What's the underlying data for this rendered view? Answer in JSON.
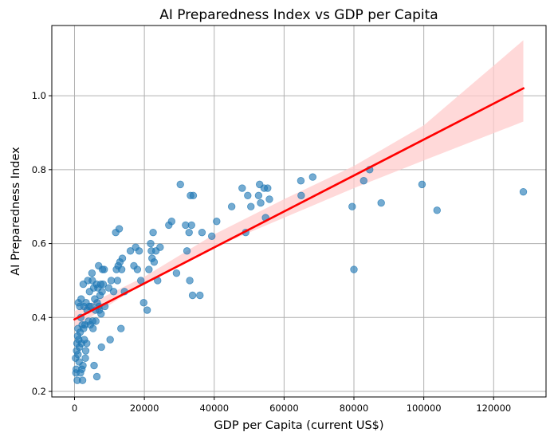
{
  "chart_data": {
    "type": "scatter",
    "title": "AI Preparedness Index vs GDP per Capita",
    "xlabel": "GDP per Capita (current US$)",
    "ylabel": "AI Preparedness Index",
    "xlim": [
      -6500,
      135000
    ],
    "ylim": [
      0.185,
      1.19
    ],
    "xticks": [
      0,
      20000,
      40000,
      60000,
      80000,
      100000,
      120000
    ],
    "xtick_labels": [
      "0",
      "20000",
      "40000",
      "60000",
      "80000",
      "100000",
      "120000"
    ],
    "yticks": [
      0.2,
      0.4,
      0.6,
      0.8,
      1.0
    ],
    "ytick_labels": [
      "0.2",
      "0.4",
      "0.6",
      "0.8",
      "1.0"
    ],
    "grid": true,
    "legend": "none",
    "colors": {
      "points": "#1f77b4",
      "fit_line": "#ff0000",
      "confidence_band": "#ffcccc"
    },
    "fit_line": {
      "x": [
        0,
        128500
      ],
      "y": [
        0.395,
        1.02
      ]
    },
    "confidence_band": {
      "x": [
        0,
        20000,
        40000,
        60000,
        80000,
        100000,
        128500
      ],
      "lower": [
        0.373,
        0.495,
        0.59,
        0.67,
        0.75,
        0.825,
        0.93
      ],
      "upper": [
        0.417,
        0.51,
        0.625,
        0.72,
        0.81,
        0.92,
        1.15
      ]
    },
    "points": [
      {
        "x": 300,
        "y": 0.29
      },
      {
        "x": 400,
        "y": 0.25
      },
      {
        "x": 500,
        "y": 0.26
      },
      {
        "x": 600,
        "y": 0.31
      },
      {
        "x": 700,
        "y": 0.33
      },
      {
        "x": 800,
        "y": 0.23
      },
      {
        "x": 900,
        "y": 0.35
      },
      {
        "x": 1000,
        "y": 0.37
      },
      {
        "x": 1000,
        "y": 0.3
      },
      {
        "x": 1100,
        "y": 0.44
      },
      {
        "x": 1200,
        "y": 0.34
      },
      {
        "x": 1300,
        "y": 0.28
      },
      {
        "x": 1400,
        "y": 0.32
      },
      {
        "x": 1500,
        "y": 0.43
      },
      {
        "x": 1600,
        "y": 0.36
      },
      {
        "x": 1700,
        "y": 0.25
      },
      {
        "x": 1800,
        "y": 0.4
      },
      {
        "x": 1900,
        "y": 0.45
      },
      {
        "x": 2000,
        "y": 0.33
      },
      {
        "x": 2100,
        "y": 0.26
      },
      {
        "x": 2200,
        "y": 0.38
      },
      {
        "x": 2300,
        "y": 0.23
      },
      {
        "x": 2400,
        "y": 0.27
      },
      {
        "x": 2500,
        "y": 0.49
      },
      {
        "x": 2600,
        "y": 0.37
      },
      {
        "x": 2700,
        "y": 0.43
      },
      {
        "x": 2800,
        "y": 0.34
      },
      {
        "x": 3000,
        "y": 0.38
      },
      {
        "x": 3100,
        "y": 0.29
      },
      {
        "x": 3200,
        "y": 0.31
      },
      {
        "x": 3300,
        "y": 0.44
      },
      {
        "x": 3500,
        "y": 0.33
      },
      {
        "x": 3600,
        "y": 0.42
      },
      {
        "x": 3800,
        "y": 0.5
      },
      {
        "x": 4000,
        "y": 0.39
      },
      {
        "x": 4200,
        "y": 0.43
      },
      {
        "x": 4300,
        "y": 0.47
      },
      {
        "x": 4500,
        "y": 0.38
      },
      {
        "x": 4700,
        "y": 0.43
      },
      {
        "x": 5000,
        "y": 0.52
      },
      {
        "x": 5100,
        "y": 0.5
      },
      {
        "x": 5200,
        "y": 0.39
      },
      {
        "x": 5300,
        "y": 0.37
      },
      {
        "x": 5500,
        "y": 0.48
      },
      {
        "x": 5600,
        "y": 0.27
      },
      {
        "x": 5800,
        "y": 0.45
      },
      {
        "x": 6000,
        "y": 0.42
      },
      {
        "x": 6100,
        "y": 0.39
      },
      {
        "x": 6300,
        "y": 0.49
      },
      {
        "x": 6400,
        "y": 0.24
      },
      {
        "x": 6500,
        "y": 0.44
      },
      {
        "x": 6700,
        "y": 0.48
      },
      {
        "x": 6900,
        "y": 0.54
      },
      {
        "x": 7000,
        "y": 0.43
      },
      {
        "x": 7100,
        "y": 0.42
      },
      {
        "x": 7300,
        "y": 0.46
      },
      {
        "x": 7500,
        "y": 0.49
      },
      {
        "x": 7600,
        "y": 0.41
      },
      {
        "x": 7700,
        "y": 0.32
      },
      {
        "x": 7900,
        "y": 0.47
      },
      {
        "x": 8000,
        "y": 0.53
      },
      {
        "x": 8200,
        "y": 0.49
      },
      {
        "x": 8500,
        "y": 0.53
      },
      {
        "x": 8700,
        "y": 0.43
      },
      {
        "x": 9800,
        "y": 0.48
      },
      {
        "x": 10200,
        "y": 0.34
      },
      {
        "x": 10500,
        "y": 0.5
      },
      {
        "x": 11200,
        "y": 0.47
      },
      {
        "x": 11800,
        "y": 0.63
      },
      {
        "x": 12000,
        "y": 0.53
      },
      {
        "x": 12300,
        "y": 0.5
      },
      {
        "x": 12500,
        "y": 0.54
      },
      {
        "x": 12800,
        "y": 0.64
      },
      {
        "x": 13000,
        "y": 0.55
      },
      {
        "x": 13300,
        "y": 0.37
      },
      {
        "x": 13500,
        "y": 0.53
      },
      {
        "x": 13700,
        "y": 0.56
      },
      {
        "x": 14300,
        "y": 0.47
      },
      {
        "x": 16000,
        "y": 0.58
      },
      {
        "x": 17000,
        "y": 0.54
      },
      {
        "x": 17500,
        "y": 0.59
      },
      {
        "x": 18000,
        "y": 0.53
      },
      {
        "x": 18500,
        "y": 0.58
      },
      {
        "x": 19000,
        "y": 0.5
      },
      {
        "x": 19800,
        "y": 0.44
      },
      {
        "x": 20800,
        "y": 0.42
      },
      {
        "x": 21300,
        "y": 0.53
      },
      {
        "x": 21800,
        "y": 0.6
      },
      {
        "x": 22000,
        "y": 0.58
      },
      {
        "x": 22200,
        "y": 0.56
      },
      {
        "x": 22500,
        "y": 0.63
      },
      {
        "x": 22800,
        "y": 0.55
      },
      {
        "x": 23300,
        "y": 0.58
      },
      {
        "x": 23800,
        "y": 0.5
      },
      {
        "x": 24500,
        "y": 0.59
      },
      {
        "x": 27000,
        "y": 0.65
      },
      {
        "x": 27800,
        "y": 0.66
      },
      {
        "x": 29200,
        "y": 0.52
      },
      {
        "x": 30300,
        "y": 0.76
      },
      {
        "x": 31800,
        "y": 0.65
      },
      {
        "x": 32200,
        "y": 0.58
      },
      {
        "x": 32800,
        "y": 0.63
      },
      {
        "x": 33000,
        "y": 0.5
      },
      {
        "x": 33200,
        "y": 0.73
      },
      {
        "x": 33500,
        "y": 0.65
      },
      {
        "x": 33800,
        "y": 0.46
      },
      {
        "x": 34000,
        "y": 0.73
      },
      {
        "x": 35900,
        "y": 0.46
      },
      {
        "x": 36500,
        "y": 0.63
      },
      {
        "x": 39300,
        "y": 0.62
      },
      {
        "x": 40700,
        "y": 0.66
      },
      {
        "x": 45000,
        "y": 0.7
      },
      {
        "x": 48000,
        "y": 0.75
      },
      {
        "x": 49000,
        "y": 0.63
      },
      {
        "x": 49600,
        "y": 0.73
      },
      {
        "x": 50500,
        "y": 0.7
      },
      {
        "x": 52700,
        "y": 0.73
      },
      {
        "x": 53000,
        "y": 0.76
      },
      {
        "x": 53300,
        "y": 0.71
      },
      {
        "x": 54300,
        "y": 0.75
      },
      {
        "x": 54700,
        "y": 0.67
      },
      {
        "x": 55300,
        "y": 0.75
      },
      {
        "x": 55800,
        "y": 0.72
      },
      {
        "x": 64800,
        "y": 0.77
      },
      {
        "x": 64900,
        "y": 0.73
      },
      {
        "x": 68200,
        "y": 0.78
      },
      {
        "x": 79500,
        "y": 0.7
      },
      {
        "x": 80000,
        "y": 0.53
      },
      {
        "x": 82800,
        "y": 0.77
      },
      {
        "x": 84500,
        "y": 0.8
      },
      {
        "x": 87800,
        "y": 0.71
      },
      {
        "x": 99500,
        "y": 0.76
      },
      {
        "x": 103800,
        "y": 0.69
      },
      {
        "x": 128500,
        "y": 0.74
      }
    ]
  }
}
